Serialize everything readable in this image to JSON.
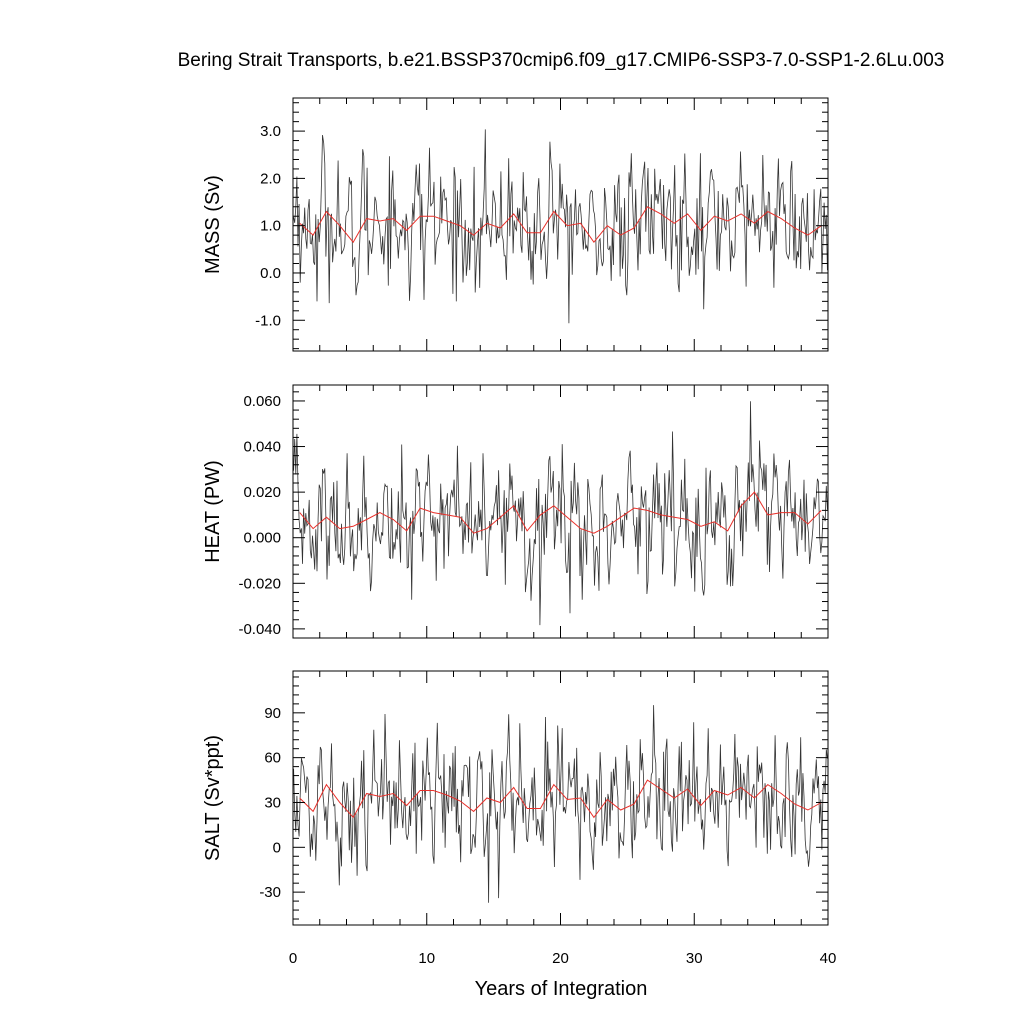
{
  "chart_data": {
    "title": "Bering Strait Transports, b.e21.BSSP370cmip6.f09_g17.CMIP6-SSP3-7.0-SSP1-2.6Lu.003",
    "xlabel": "Years of Integration",
    "xlim": [
      0,
      40
    ],
    "x_ticks": [
      0,
      10,
      20,
      30,
      40
    ],
    "x_tick_labels": [
      "0",
      "10",
      "20",
      "30",
      "40"
    ],
    "panels": [
      {
        "type": "line",
        "ylabel": "MASS (Sv)",
        "ylim": [
          -1.65,
          3.7
        ],
        "y_ticks": [
          -1.0,
          0.0,
          1.0,
          2.0,
          3.0
        ],
        "y_tick_labels": [
          "-1.0",
          "0.0",
          "1.0",
          "2.0",
          "3.0"
        ],
        "annual_mean": {
          "name": "",
          "color": "#e8302a",
          "x": [
            0.5,
            1.5,
            2.5,
            3.5,
            4.5,
            5.5,
            6.5,
            7.5,
            8.5,
            9.5,
            10.5,
            11.5,
            12.5,
            13.5,
            14.5,
            15.5,
            16.5,
            17.5,
            18.5,
            19.5,
            20.5,
            21.5,
            22.5,
            23.5,
            24.5,
            25.5,
            26.5,
            27.5,
            28.5,
            29.5,
            30.5,
            31.5,
            32.5,
            33.5,
            34.5,
            35.5,
            36.5,
            37.5,
            38.5,
            39.5
          ],
          "y": [
            1.05,
            0.8,
            1.3,
            1.0,
            0.65,
            1.15,
            1.1,
            1.15,
            0.9,
            1.2,
            1.2,
            1.1,
            1.0,
            0.8,
            1.05,
            0.95,
            1.25,
            0.85,
            0.85,
            1.3,
            1.0,
            1.05,
            0.65,
            1.0,
            0.8,
            0.95,
            1.4,
            1.25,
            1.05,
            1.25,
            0.9,
            1.2,
            1.1,
            1.25,
            1.05,
            1.3,
            1.15,
            0.95,
            0.8,
            1.0
          ]
        },
        "monthly": {
          "color": "#333333",
          "n": 480
        }
      },
      {
        "type": "line",
        "ylabel": "HEAT (PW)",
        "ylim": [
          -0.044,
          0.067
        ],
        "y_ticks": [
          -0.04,
          -0.02,
          0.0,
          0.02,
          0.04,
          0.06
        ],
        "y_tick_labels": [
          "-0.040",
          "-0.020",
          "0.000",
          "0.020",
          "0.040",
          "0.060"
        ],
        "annual_mean": {
          "name": "",
          "color": "#e8302a",
          "x": [
            0.5,
            1.5,
            2.5,
            3.5,
            4.5,
            5.5,
            6.5,
            7.5,
            8.5,
            9.5,
            10.5,
            11.5,
            12.5,
            13.5,
            14.5,
            15.5,
            16.5,
            17.5,
            18.5,
            19.5,
            20.5,
            21.5,
            22.5,
            23.5,
            24.5,
            25.5,
            26.5,
            27.5,
            28.5,
            29.5,
            30.5,
            31.5,
            32.5,
            33.5,
            34.5,
            35.5,
            36.5,
            37.5,
            38.5,
            39.5
          ],
          "y": [
            0.011,
            0.004,
            0.009,
            0.004,
            0.005,
            0.008,
            0.011,
            0.008,
            0.003,
            0.013,
            0.011,
            0.01,
            0.009,
            0.002,
            0.004,
            0.009,
            0.014,
            0.003,
            0.01,
            0.014,
            0.009,
            0.004,
            0.002,
            0.005,
            0.009,
            0.013,
            0.012,
            0.01,
            0.009,
            0.008,
            0.005,
            0.007,
            0.003,
            0.014,
            0.02,
            0.01,
            0.011,
            0.011,
            0.006,
            0.012
          ]
        },
        "monthly": {
          "color": "#333333",
          "n": 480
        }
      },
      {
        "type": "line",
        "ylabel": "SALT (Sv*ppt)",
        "ylim": [
          -52,
          118
        ],
        "y_ticks": [
          -30,
          0,
          30,
          60,
          90
        ],
        "y_tick_labels": [
          "-30",
          "0",
          "30",
          "60",
          "90"
        ],
        "annual_mean": {
          "name": "",
          "color": "#e8302a",
          "x": [
            0.5,
            1.5,
            2.5,
            3.5,
            4.5,
            5.5,
            6.5,
            7.5,
            8.5,
            9.5,
            10.5,
            11.5,
            12.5,
            13.5,
            14.5,
            15.5,
            16.5,
            17.5,
            18.5,
            19.5,
            20.5,
            21.5,
            22.5,
            23.5,
            24.5,
            25.5,
            26.5,
            27.5,
            28.5,
            29.5,
            30.5,
            31.5,
            32.5,
            33.5,
            34.5,
            35.5,
            36.5,
            37.5,
            38.5,
            39.5
          ],
          "y": [
            33,
            24,
            42,
            30,
            20,
            36,
            34,
            36,
            28,
            38,
            38,
            35,
            31,
            24,
            33,
            30,
            40,
            26,
            26,
            42,
            32,
            33,
            20,
            32,
            25,
            29,
            45,
            39,
            33,
            39,
            28,
            38,
            35,
            40,
            33,
            42,
            36,
            29,
            25,
            30
          ]
        },
        "monthly": {
          "color": "#333333",
          "n": 480
        }
      }
    ]
  }
}
